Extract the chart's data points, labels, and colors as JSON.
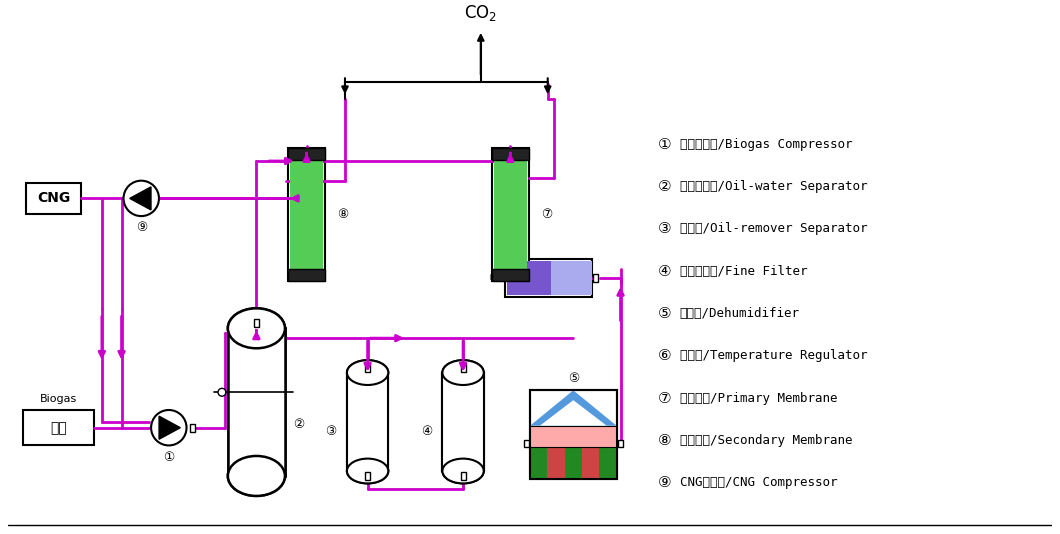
{
  "bg_color": "#ffffff",
  "flow_color": "#cc00cc",
  "legend_items": [
    [
      "①",
      "泼气压缩机/Biogas Compressor"
    ],
    [
      "②",
      "油水分离器/Oil-water Separator"
    ],
    [
      "③",
      "除油器/Oil-remover Separator"
    ],
    [
      "④",
      "精密过滤器/Fine Filter"
    ],
    [
      "⑤",
      "除湿器/Dehumidifier"
    ],
    [
      "⑥",
      "调湿器/Temperature Regulator"
    ],
    [
      "⑦",
      "一级膜件/Primary Membrane"
    ],
    [
      "⑧",
      "二级膜件/Secondary Membrane"
    ],
    [
      "⑨",
      "CNG压缩机/CNG Compressor"
    ]
  ],
  "co2_label": "CO$_2$",
  "biogas_label_top": "Biogas",
  "biogas_label_bot": "泼气",
  "cng_label": "CNG"
}
